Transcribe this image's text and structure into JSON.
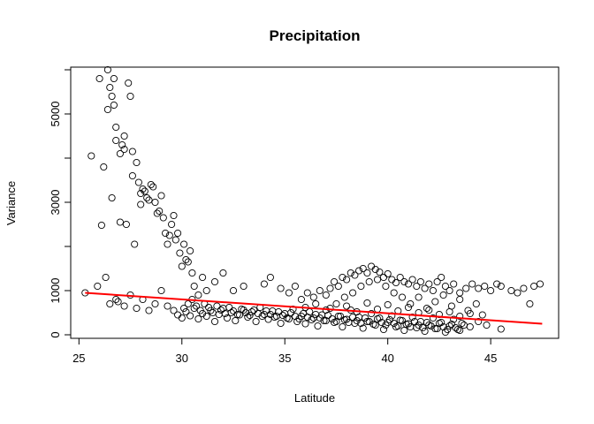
{
  "chart_data": {
    "type": "scatter",
    "title": "Precipitation",
    "xlabel": "Latitude",
    "ylabel": "Variance",
    "xlim": [
      24.6,
      48.3
    ],
    "ylim": [
      -80,
      6060
    ],
    "xticks": [
      25,
      30,
      35,
      40,
      45
    ],
    "yticks": [
      0,
      1000,
      3000,
      5000
    ],
    "ytick_labels_shown": [
      0,
      1000,
      3000,
      5000
    ],
    "ytick_minor": [
      2000,
      4000,
      6000
    ],
    "grid": false,
    "colors": {
      "points": "#000000",
      "trend": "#ff0000"
    },
    "trend_line": {
      "x": [
        25.3,
        47.5
      ],
      "y": [
        950,
        250
      ]
    },
    "points": [
      [
        25.3,
        950
      ],
      [
        25.6,
        4050
      ],
      [
        25.9,
        1100
      ],
      [
        26.0,
        5800
      ],
      [
        26.1,
        2480
      ],
      [
        26.2,
        3800
      ],
      [
        26.3,
        1300
      ],
      [
        26.4,
        5100
      ],
      [
        26.4,
        6000
      ],
      [
        26.5,
        5600
      ],
      [
        26.6,
        5400
      ],
      [
        26.6,
        3100
      ],
      [
        26.7,
        5800
      ],
      [
        26.7,
        5200
      ],
      [
        26.8,
        4700
      ],
      [
        26.8,
        4400
      ],
      [
        26.9,
        750
      ],
      [
        27.0,
        4100
      ],
      [
        27.0,
        2550
      ],
      [
        27.1,
        4300
      ],
      [
        27.2,
        4500
      ],
      [
        27.2,
        4200
      ],
      [
        27.3,
        2500
      ],
      [
        27.4,
        5700
      ],
      [
        27.5,
        5400
      ],
      [
        27.6,
        4150
      ],
      [
        27.6,
        3600
      ],
      [
        27.7,
        2050
      ],
      [
        27.8,
        3900
      ],
      [
        27.9,
        3450
      ],
      [
        28.0,
        3200
      ],
      [
        28.0,
        2950
      ],
      [
        28.1,
        3300
      ],
      [
        28.2,
        3250
      ],
      [
        28.3,
        3100
      ],
      [
        28.4,
        3050
      ],
      [
        28.5,
        3400
      ],
      [
        28.6,
        3350
      ],
      [
        28.7,
        3000
      ],
      [
        28.8,
        2750
      ],
      [
        28.9,
        2800
      ],
      [
        29.0,
        3150
      ],
      [
        29.1,
        2650
      ],
      [
        29.2,
        2300
      ],
      [
        29.3,
        2050
      ],
      [
        29.4,
        2250
      ],
      [
        29.5,
        2500
      ],
      [
        29.6,
        2700
      ],
      [
        29.7,
        2150
      ],
      [
        29.8,
        2300
      ],
      [
        29.9,
        1850
      ],
      [
        30.0,
        1550
      ],
      [
        30.1,
        2050
      ],
      [
        30.2,
        1700
      ],
      [
        30.3,
        1650
      ],
      [
        30.4,
        1900
      ],
      [
        30.5,
        1400
      ],
      [
        30.6,
        1100
      ],
      [
        30.8,
        900
      ],
      [
        31.0,
        1300
      ],
      [
        31.2,
        1000
      ],
      [
        31.6,
        1200
      ],
      [
        32.0,
        1400
      ],
      [
        32.5,
        1000
      ],
      [
        33.0,
        1100
      ],
      [
        26.5,
        700
      ],
      [
        26.8,
        800
      ],
      [
        27.2,
        650
      ],
      [
        27.5,
        900
      ],
      [
        27.8,
        600
      ],
      [
        28.1,
        800
      ],
      [
        28.4,
        550
      ],
      [
        28.7,
        700
      ],
      [
        29.0,
        1000
      ],
      [
        29.3,
        650
      ],
      [
        29.6,
        550
      ],
      [
        29.8,
        450
      ],
      [
        30.0,
        380
      ],
      [
        30.2,
        520
      ],
      [
        30.4,
        430
      ],
      [
        30.6,
        600
      ],
      [
        30.8,
        360
      ],
      [
        31.0,
        480
      ],
      [
        31.2,
        420
      ],
      [
        31.4,
        550
      ],
      [
        31.6,
        300
      ],
      [
        31.8,
        460
      ],
      [
        32.0,
        600
      ],
      [
        32.2,
        380
      ],
      [
        32.4,
        500
      ],
      [
        32.6,
        320
      ],
      [
        32.8,
        450
      ],
      [
        33.0,
        560
      ],
      [
        33.2,
        400
      ],
      [
        33.4,
        520
      ],
      [
        33.6,
        300
      ],
      [
        33.8,
        620
      ],
      [
        34.0,
        460
      ],
      [
        34.2,
        350
      ],
      [
        34.4,
        540
      ],
      [
        34.6,
        420
      ],
      [
        34.8,
        260
      ],
      [
        35.0,
        480
      ],
      [
        35.2,
        360
      ],
      [
        35.4,
        580
      ],
      [
        35.6,
        300
      ],
      [
        35.8,
        420
      ],
      [
        36.0,
        250
      ],
      [
        36.2,
        520
      ],
      [
        36.4,
        380
      ],
      [
        36.6,
        200
      ],
      [
        36.8,
        450
      ],
      [
        37.0,
        320
      ],
      [
        37.2,
        600
      ],
      [
        37.4,
        280
      ],
      [
        37.6,
        420
      ],
      [
        37.8,
        180
      ],
      [
        38.0,
        350
      ],
      [
        38.2,
        560
      ],
      [
        38.4,
        260
      ],
      [
        38.6,
        400
      ],
      [
        38.8,
        150
      ],
      [
        39.0,
        300
      ],
      [
        39.2,
        480
      ],
      [
        39.4,
        220
      ],
      [
        39.6,
        380
      ],
      [
        39.8,
        120
      ],
      [
        40.0,
        280
      ],
      [
        40.2,
        430
      ],
      [
        40.4,
        180
      ],
      [
        40.6,
        330
      ],
      [
        40.8,
        100
      ],
      [
        41.0,
        250
      ],
      [
        41.2,
        400
      ],
      [
        41.4,
        160
      ],
      [
        41.6,
        300
      ],
      [
        41.8,
        80
      ],
      [
        42.0,
        220
      ],
      [
        42.2,
        380
      ],
      [
        42.4,
        140
      ],
      [
        42.6,
        280
      ],
      [
        42.8,
        60
      ],
      [
        43.0,
        200
      ],
      [
        43.2,
        350
      ],
      [
        43.4,
        120
      ],
      [
        43.6,
        260
      ],
      [
        44.0,
        180
      ],
      [
        44.4,
        300
      ],
      [
        44.8,
        220
      ],
      [
        45.5,
        130
      ],
      [
        34.0,
        1150
      ],
      [
        34.3,
        1300
      ],
      [
        34.8,
        1050
      ],
      [
        35.2,
        950
      ],
      [
        35.5,
        1100
      ],
      [
        35.8,
        800
      ],
      [
        36.1,
        950
      ],
      [
        36.4,
        850
      ],
      [
        36.7,
        1000
      ],
      [
        37.0,
        900
      ],
      [
        37.2,
        1050
      ],
      [
        37.4,
        1200
      ],
      [
        37.6,
        1100
      ],
      [
        37.8,
        1300
      ],
      [
        38.0,
        1250
      ],
      [
        38.2,
        1400
      ],
      [
        38.4,
        1350
      ],
      [
        38.6,
        1450
      ],
      [
        38.8,
        1500
      ],
      [
        39.0,
        1400
      ],
      [
        39.2,
        1550
      ],
      [
        39.4,
        1480
      ],
      [
        39.6,
        1420
      ],
      [
        39.8,
        1300
      ],
      [
        40.0,
        1380
      ],
      [
        40.2,
        1250
      ],
      [
        40.4,
        1180
      ],
      [
        40.6,
        1300
      ],
      [
        40.8,
        1200
      ],
      [
        41.0,
        1150
      ],
      [
        41.2,
        1250
      ],
      [
        41.4,
        1100
      ],
      [
        41.6,
        1200
      ],
      [
        41.8,
        1050
      ],
      [
        42.0,
        1150
      ],
      [
        42.2,
        1000
      ],
      [
        42.4,
        1200
      ],
      [
        42.6,
        1300
      ],
      [
        42.8,
        1100
      ],
      [
        43.0,
        1000
      ],
      [
        43.2,
        1150
      ],
      [
        43.5,
        950
      ],
      [
        43.8,
        1050
      ],
      [
        44.1,
        1150
      ],
      [
        44.4,
        1050
      ],
      [
        44.7,
        1100
      ],
      [
        45.0,
        1000
      ],
      [
        45.3,
        1150
      ],
      [
        45.5,
        1100
      ],
      [
        46.0,
        1000
      ],
      [
        46.3,
        950
      ],
      [
        46.6,
        1050
      ],
      [
        46.9,
        700
      ],
      [
        47.1,
        1100
      ],
      [
        47.4,
        1150
      ],
      [
        37.5,
        700
      ],
      [
        37.9,
        850
      ],
      [
        38.3,
        950
      ],
      [
        38.7,
        1100
      ],
      [
        39.1,
        1200
      ],
      [
        39.5,
        1250
      ],
      [
        39.9,
        1100
      ],
      [
        40.3,
        950
      ],
      [
        40.7,
        850
      ],
      [
        41.1,
        700
      ],
      [
        41.5,
        850
      ],
      [
        41.9,
        600
      ],
      [
        42.3,
        750
      ],
      [
        42.7,
        900
      ],
      [
        43.1,
        650
      ],
      [
        43.5,
        800
      ],
      [
        43.9,
        550
      ],
      [
        44.3,
        700
      ],
      [
        44.6,
        450
      ],
      [
        36.0,
        620
      ],
      [
        36.5,
        700
      ],
      [
        37.0,
        560
      ],
      [
        38.0,
        650
      ],
      [
        38.5,
        520
      ],
      [
        39.0,
        720
      ],
      [
        39.5,
        580
      ],
      [
        40.0,
        680
      ],
      [
        40.5,
        540
      ],
      [
        41.0,
        620
      ],
      [
        41.5,
        500
      ],
      [
        42.0,
        560
      ],
      [
        42.5,
        460
      ],
      [
        43.0,
        520
      ],
      [
        43.5,
        420
      ],
      [
        44.0,
        480
      ],
      [
        30.1,
        600
      ],
      [
        30.3,
        700
      ],
      [
        30.5,
        800
      ],
      [
        30.7,
        650
      ],
      [
        30.9,
        550
      ],
      [
        31.1,
        700
      ],
      [
        31.3,
        620
      ],
      [
        31.5,
        500
      ],
      [
        31.7,
        650
      ],
      [
        31.9,
        560
      ],
      [
        32.1,
        480
      ],
      [
        32.3,
        620
      ],
      [
        32.5,
        540
      ],
      [
        32.7,
        460
      ],
      [
        32.9,
        580
      ],
      [
        33.1,
        500
      ],
      [
        33.3,
        440
      ],
      [
        33.5,
        560
      ],
      [
        33.7,
        480
      ],
      [
        33.9,
        420
      ],
      [
        34.1,
        540
      ],
      [
        34.3,
        460
      ],
      [
        34.5,
        400
      ],
      [
        34.7,
        520
      ],
      [
        34.9,
        440
      ],
      [
        35.1,
        380
      ],
      [
        35.3,
        500
      ],
      [
        35.5,
        420
      ],
      [
        35.7,
        360
      ],
      [
        35.9,
        480
      ],
      [
        36.1,
        400
      ],
      [
        36.3,
        340
      ],
      [
        36.5,
        460
      ],
      [
        36.7,
        380
      ],
      [
        36.9,
        320
      ],
      [
        37.1,
        440
      ],
      [
        37.3,
        360
      ],
      [
        37.5,
        300
      ],
      [
        37.7,
        420
      ],
      [
        37.9,
        340
      ],
      [
        38.1,
        280
      ],
      [
        38.3,
        400
      ],
      [
        38.5,
        320
      ],
      [
        38.7,
        260
      ],
      [
        38.9,
        380
      ],
      [
        39.1,
        300
      ],
      [
        39.3,
        240
      ],
      [
        39.5,
        360
      ],
      [
        39.7,
        280
      ],
      [
        39.9,
        220
      ],
      [
        40.1,
        340
      ],
      [
        40.3,
        260
      ],
      [
        40.5,
        200
      ],
      [
        40.7,
        320
      ],
      [
        40.9,
        240
      ],
      [
        41.1,
        180
      ],
      [
        41.3,
        300
      ],
      [
        41.5,
        220
      ],
      [
        41.7,
        160
      ],
      [
        41.9,
        280
      ],
      [
        42.1,
        200
      ],
      [
        42.3,
        140
      ],
      [
        42.5,
        260
      ],
      [
        42.7,
        180
      ],
      [
        42.9,
        120
      ],
      [
        43.1,
        240
      ],
      [
        43.3,
        160
      ],
      [
        43.5,
        100
      ],
      [
        43.7,
        220
      ]
    ]
  }
}
